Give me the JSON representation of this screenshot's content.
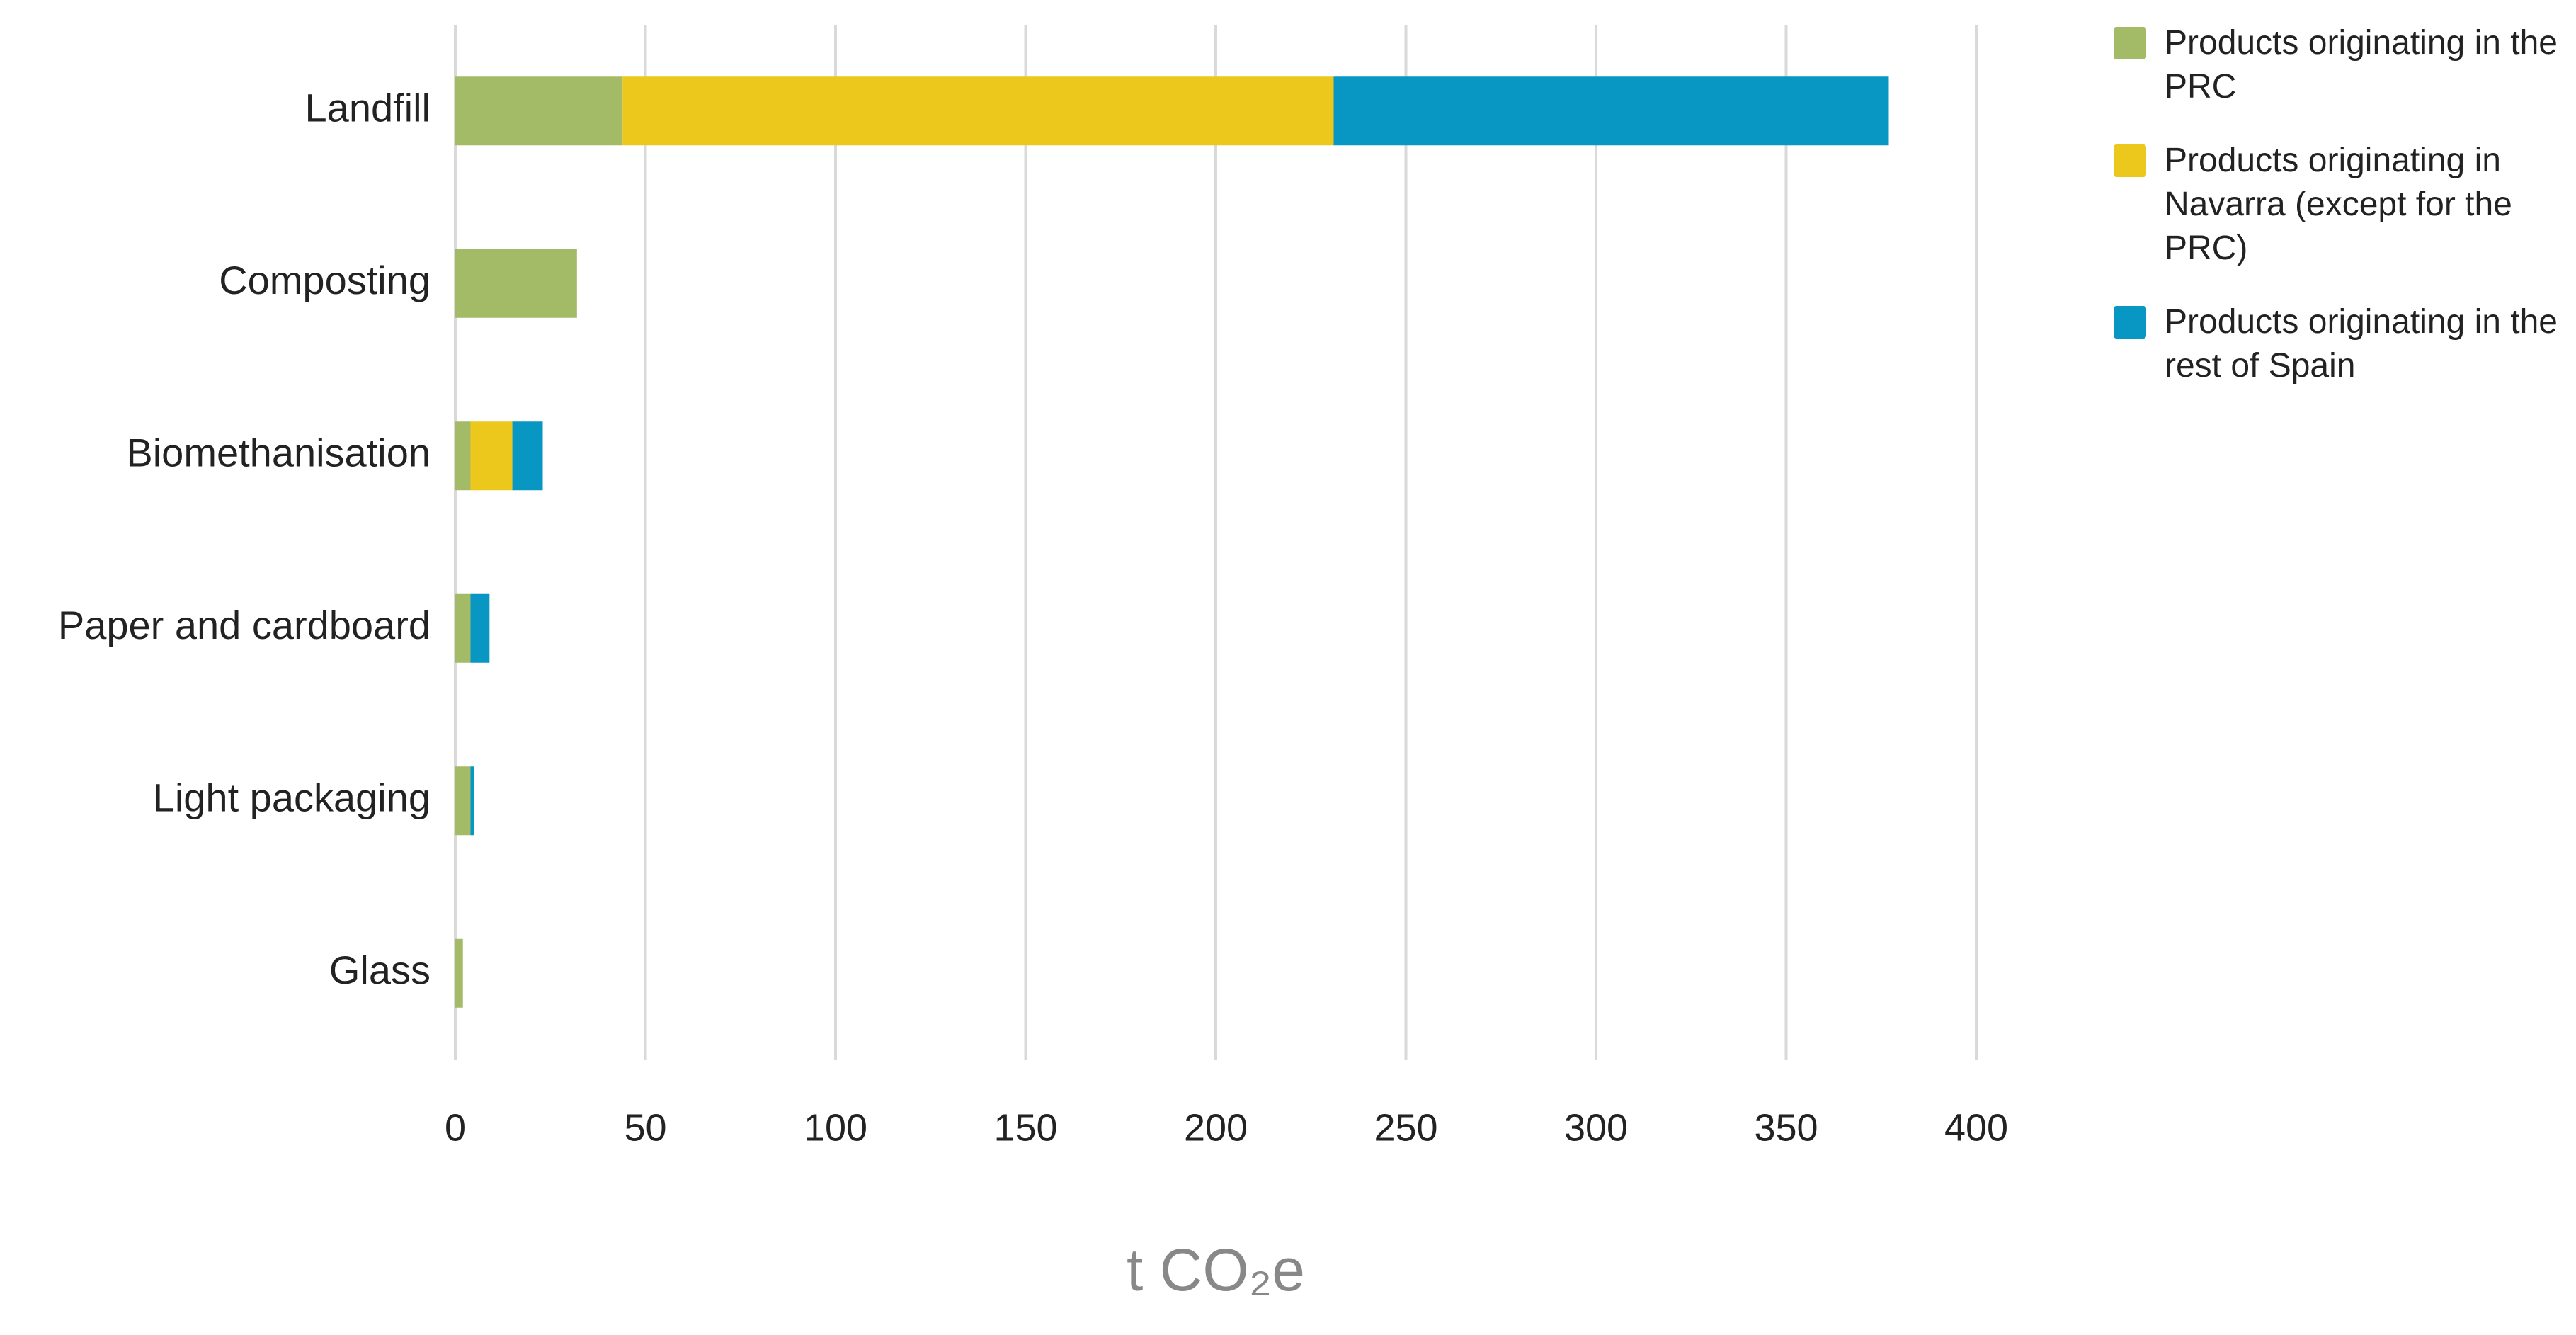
{
  "chart_data": {
    "type": "stacked-bar-horizontal",
    "categories": [
      "Landfill",
      "Composting",
      "Biomethanisation",
      "Paper and cardboard",
      "Light packaging",
      "Glass"
    ],
    "series": [
      {
        "name": "Products originating in the PRC",
        "color": "#a3bb67",
        "values": [
          44,
          32,
          4,
          4,
          4,
          2
        ]
      },
      {
        "name": "Products originating in Navarra (except for the PRC)",
        "color": "#ecc81c",
        "values": [
          187,
          0,
          11,
          0,
          0,
          0
        ]
      },
      {
        "name": "Products originating in the rest of Spain",
        "color": "#0797c2",
        "values": [
          146,
          0,
          8,
          5,
          1,
          0
        ]
      }
    ],
    "xlim": [
      0,
      400
    ],
    "xticks": [
      0,
      50,
      100,
      150,
      200,
      250,
      300,
      350,
      400
    ],
    "x_label": "t CO₂e",
    "grid": true
  }
}
